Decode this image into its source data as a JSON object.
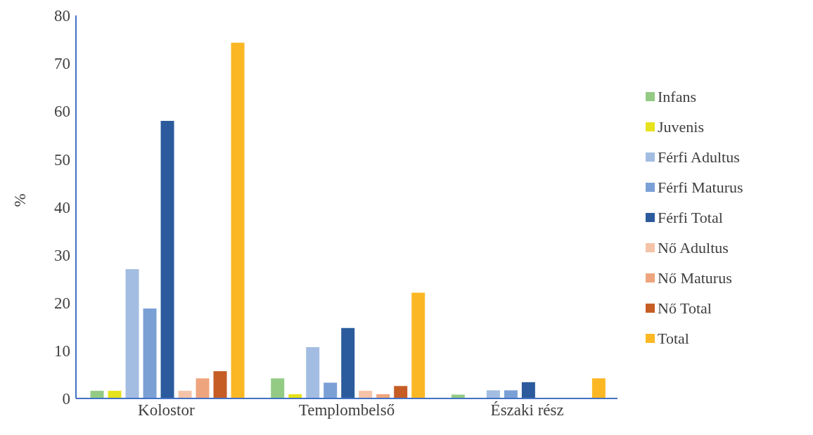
{
  "chart_data": {
    "type": "bar",
    "ylabel": "%",
    "categories": [
      "Kolostor",
      "Templombelső",
      "Északi rész"
    ],
    "series": [
      {
        "name": "Infans",
        "color": "#93cb84",
        "values": [
          1.6,
          4.2,
          0.8
        ]
      },
      {
        "name": "Juvenis",
        "color": "#e6e21c",
        "values": [
          1.6,
          0.9,
          0
        ]
      },
      {
        "name": "Férfi Adultus",
        "color": "#a3bde2",
        "values": [
          27,
          10.7,
          1.7
        ]
      },
      {
        "name": "Férfi Maturus",
        "color": "#7ba0d6",
        "values": [
          18.8,
          3.3,
          1.7
        ]
      },
      {
        "name": "Férfi Total",
        "color": "#2b5b9c",
        "values": [
          58,
          14.7,
          3.4
        ]
      },
      {
        "name": "Nő Adultus",
        "color": "#f4c3a8",
        "values": [
          1.6,
          1.6,
          0
        ]
      },
      {
        "name": "Nő Maturus",
        "color": "#eea57e",
        "values": [
          4.2,
          0.9,
          0
        ]
      },
      {
        "name": "Nő Total",
        "color": "#c55d25",
        "values": [
          5.7,
          2.6,
          0
        ]
      },
      {
        "name": "Total",
        "color": "#fbb824",
        "values": [
          74.3,
          22.1,
          4.2
        ]
      }
    ],
    "ylim": [
      0,
      80
    ],
    "yticks": [
      0,
      10,
      20,
      30,
      40,
      50,
      60,
      70,
      80
    ],
    "grid": false,
    "legend": "right"
  }
}
